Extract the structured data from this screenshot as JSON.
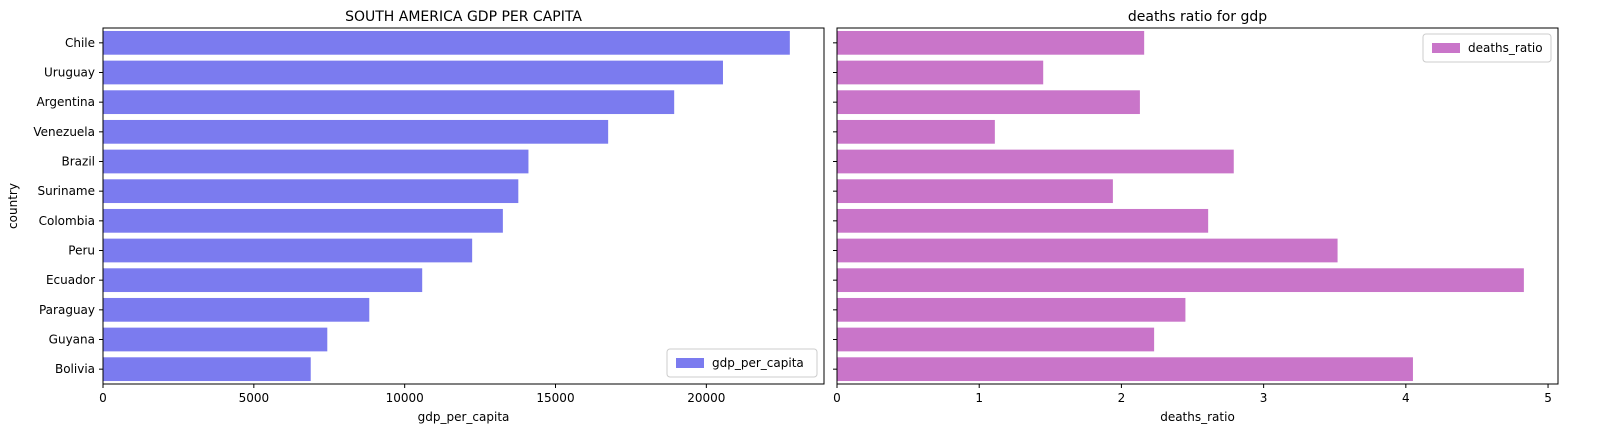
{
  "chart_data": [
    {
      "type": "bar",
      "orientation": "horizontal",
      "title": "SOUTH AMERICA GDP PER CAPITA",
      "xlabel": "gdp_per_capita",
      "ylabel": "country",
      "categories": [
        "Chile",
        "Uruguay",
        "Argentina",
        "Venezuela",
        "Brazil",
        "Suriname",
        "Colombia",
        "Peru",
        "Ecuador",
        "Paraguay",
        "Guyana",
        "Bolivia"
      ],
      "series": [
        {
          "name": "gdp_per_capita",
          "color": "#7b7bef",
          "values": [
            22767,
            20551,
            18934,
            16745,
            14103,
            13767,
            13255,
            12237,
            10581,
            8827,
            7435,
            6886
          ]
        }
      ],
      "xlim": [
        0,
        23900
      ],
      "xticks": [
        0,
        5000,
        10000,
        15000,
        20000
      ],
      "legend": "lower-right",
      "grid": false
    },
    {
      "type": "bar",
      "orientation": "horizontal",
      "title": "deaths ratio for gdp",
      "xlabel": "deaths_ratio",
      "ylabel": "",
      "categories": [
        "Chile",
        "Uruguay",
        "Argentina",
        "Venezuela",
        "Brazil",
        "Suriname",
        "Colombia",
        "Peru",
        "Ecuador",
        "Paraguay",
        "Guyana",
        "Bolivia"
      ],
      "series": [
        {
          "name": "deaths_ratio",
          "color": "#c975c9",
          "values": [
            2.16,
            1.45,
            2.13,
            1.11,
            2.79,
            1.94,
            2.61,
            3.52,
            4.83,
            2.45,
            2.23,
            4.05
          ]
        }
      ],
      "xlim": [
        0,
        5.07
      ],
      "xticks": [
        0,
        1,
        2,
        3,
        4,
        5
      ],
      "legend": "upper-right",
      "grid": false
    }
  ]
}
